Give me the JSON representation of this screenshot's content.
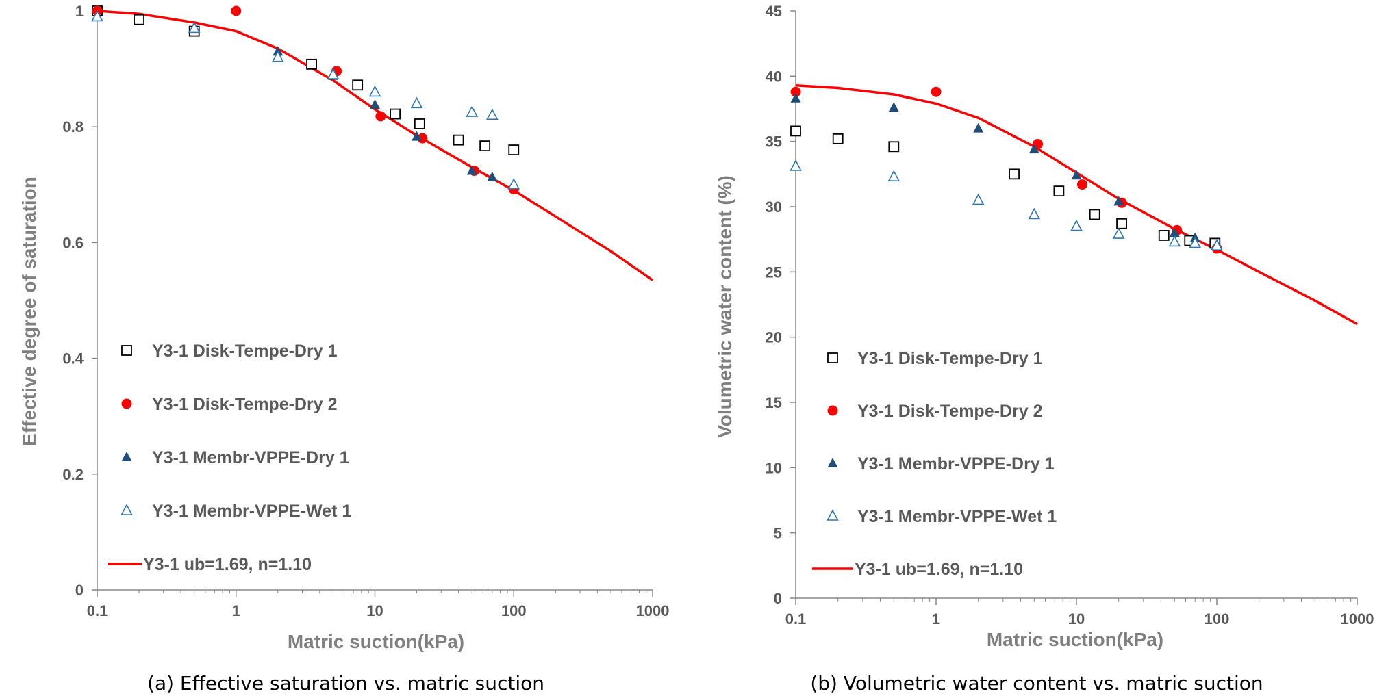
{
  "chart_data": [
    {
      "type": "scatter",
      "xlabel": "Matric suction(kPa)",
      "ylabel": "Effective degree of saturation",
      "caption": "(a) Effective saturation vs. matric suction",
      "x_scale": "log",
      "xlim": [
        0.1,
        1000
      ],
      "ylim": [
        0,
        1
      ],
      "x_ticks": [
        0.1,
        1,
        10,
        100,
        1000
      ],
      "x_tick_labels": [
        "0.1",
        "1",
        "10",
        "100",
        "1000"
      ],
      "y_ticks": [
        0,
        0.2,
        0.4,
        0.6,
        0.8,
        1
      ],
      "y_tick_labels": [
        "0",
        "0.2",
        "0.4",
        "0.6",
        "0.8",
        "1"
      ],
      "grid": false,
      "legend_position": "bottom-left",
      "series": [
        {
          "name": "Y3-1 Disk-Tempe-Dry 1",
          "marker": "open-square",
          "color": "#000000",
          "points": [
            [
              0.1,
              1.0
            ],
            [
              0.2,
              0.985
            ],
            [
              0.5,
              0.965
            ],
            [
              3.5,
              0.908
            ],
            [
              7.5,
              0.872
            ],
            [
              14,
              0.822
            ],
            [
              21,
              0.805
            ],
            [
              40,
              0.777
            ],
            [
              62,
              0.767
            ],
            [
              100,
              0.76
            ]
          ]
        },
        {
          "name": "Y3-1 Disk-Tempe-Dry 2",
          "marker": "filled-circle",
          "color": "#ff0000",
          "points": [
            [
              0.1,
              1.0
            ],
            [
              1,
              1.0
            ],
            [
              5.3,
              0.896
            ],
            [
              11,
              0.818
            ],
            [
              22,
              0.78
            ],
            [
              52,
              0.724
            ],
            [
              100,
              0.692
            ]
          ]
        },
        {
          "name": "Y3-1 Membr-VPPE-Dry 1",
          "marker": "filled-triangle",
          "color": "#1f4e79",
          "points": [
            [
              0.1,
              0.99
            ],
            [
              0.5,
              0.97
            ],
            [
              2,
              0.93
            ],
            [
              5,
              0.888
            ],
            [
              10,
              0.838
            ],
            [
              20,
              0.783
            ],
            [
              50,
              0.724
            ],
            [
              70,
              0.713
            ],
            [
              100,
              0.7
            ]
          ]
        },
        {
          "name": "Y3-1 Membr-VPPE-Wet 1",
          "marker": "open-triangle",
          "color": "#2e75b6",
          "points": [
            [
              0.1,
              0.99
            ],
            [
              0.5,
              0.97
            ],
            [
              2,
              0.92
            ],
            [
              5,
              0.89
            ],
            [
              10,
              0.86
            ],
            [
              20,
              0.84
            ],
            [
              50,
              0.825
            ],
            [
              70,
              0.82
            ],
            [
              100,
              0.7
            ]
          ]
        },
        {
          "name": "Y3-1 ub=1.69, n=1.10",
          "marker": "line",
          "color": "#ff0000",
          "points": [
            [
              0.1,
              1.0
            ],
            [
              0.2,
              0.995
            ],
            [
              0.5,
              0.98
            ],
            [
              1,
              0.965
            ],
            [
              2,
              0.935
            ],
            [
              5,
              0.88
            ],
            [
              10,
              0.83
            ],
            [
              20,
              0.785
            ],
            [
              50,
              0.73
            ],
            [
              100,
              0.69
            ],
            [
              200,
              0.645
            ],
            [
              500,
              0.585
            ],
            [
              1000,
              0.535
            ]
          ]
        }
      ]
    },
    {
      "type": "scatter",
      "xlabel": "Matric suction(kPa)",
      "ylabel": "Volumetric water content (%)",
      "caption": "(b) Volumetric water content vs. matric suction",
      "x_scale": "log",
      "xlim": [
        0.1,
        1000
      ],
      "ylim": [
        0,
        45
      ],
      "x_ticks": [
        0.1,
        1,
        10,
        100,
        1000
      ],
      "x_tick_labels": [
        "0.1",
        "1",
        "10",
        "100",
        "1000"
      ],
      "y_ticks": [
        0,
        5,
        10,
        15,
        20,
        25,
        30,
        35,
        40,
        45
      ],
      "y_tick_labels": [
        "0",
        "5",
        "10",
        "15",
        "20",
        "25",
        "30",
        "35",
        "40",
        "45"
      ],
      "grid": false,
      "legend_position": "bottom-left",
      "series": [
        {
          "name": "Y3-1 Disk-Tempe-Dry 1",
          "marker": "open-square",
          "color": "#000000",
          "points": [
            [
              0.1,
              35.8
            ],
            [
              0.2,
              35.2
            ],
            [
              0.5,
              34.6
            ],
            [
              3.6,
              32.5
            ],
            [
              7.5,
              31.2
            ],
            [
              13.5,
              29.4
            ],
            [
              21,
              28.7
            ],
            [
              42,
              27.8
            ],
            [
              64,
              27.4
            ],
            [
              97,
              27.2
            ]
          ]
        },
        {
          "name": "Y3-1 Disk-Tempe-Dry 2",
          "marker": "filled-circle",
          "color": "#ff0000",
          "points": [
            [
              0.1,
              38.8
            ],
            [
              1,
              38.8
            ],
            [
              5.3,
              34.8
            ],
            [
              11,
              31.7
            ],
            [
              21,
              30.3
            ],
            [
              52,
              28.2
            ],
            [
              100,
              26.8
            ]
          ]
        },
        {
          "name": "Y3-1 Membr-VPPE-Dry 1",
          "marker": "filled-triangle",
          "color": "#1f4e79",
          "points": [
            [
              0.1,
              38.3
            ],
            [
              0.5,
              37.6
            ],
            [
              2,
              36
            ],
            [
              5,
              34.4
            ],
            [
              10,
              32.4
            ],
            [
              20,
              30.4
            ],
            [
              50,
              28
            ],
            [
              70,
              27.6
            ],
            [
              100,
              27.1
            ]
          ]
        },
        {
          "name": "Y3-1 Membr-VPPE-Wet 1",
          "marker": "open-triangle",
          "color": "#2e75b6",
          "points": [
            [
              0.1,
              33.1
            ],
            [
              0.5,
              32.3
            ],
            [
              2,
              30.5
            ],
            [
              5,
              29.4
            ],
            [
              10,
              28.5
            ],
            [
              20,
              27.9
            ],
            [
              50,
              27.3
            ],
            [
              70,
              27.2
            ],
            [
              100,
              27.0
            ]
          ]
        },
        {
          "name": "Y3-1 ub=1.69, n=1.10",
          "marker": "line",
          "color": "#ff0000",
          "points": [
            [
              0.1,
              39.3
            ],
            [
              0.2,
              39.1
            ],
            [
              0.5,
              38.6
            ],
            [
              1,
              37.9
            ],
            [
              2,
              36.8
            ],
            [
              5,
              34.6
            ],
            [
              10,
              32.6
            ],
            [
              20,
              30.6
            ],
            [
              50,
              28.3
            ],
            [
              100,
              26.7
            ],
            [
              200,
              25.0
            ],
            [
              500,
              22.8
            ],
            [
              1000,
              21.0
            ]
          ]
        }
      ]
    }
  ]
}
